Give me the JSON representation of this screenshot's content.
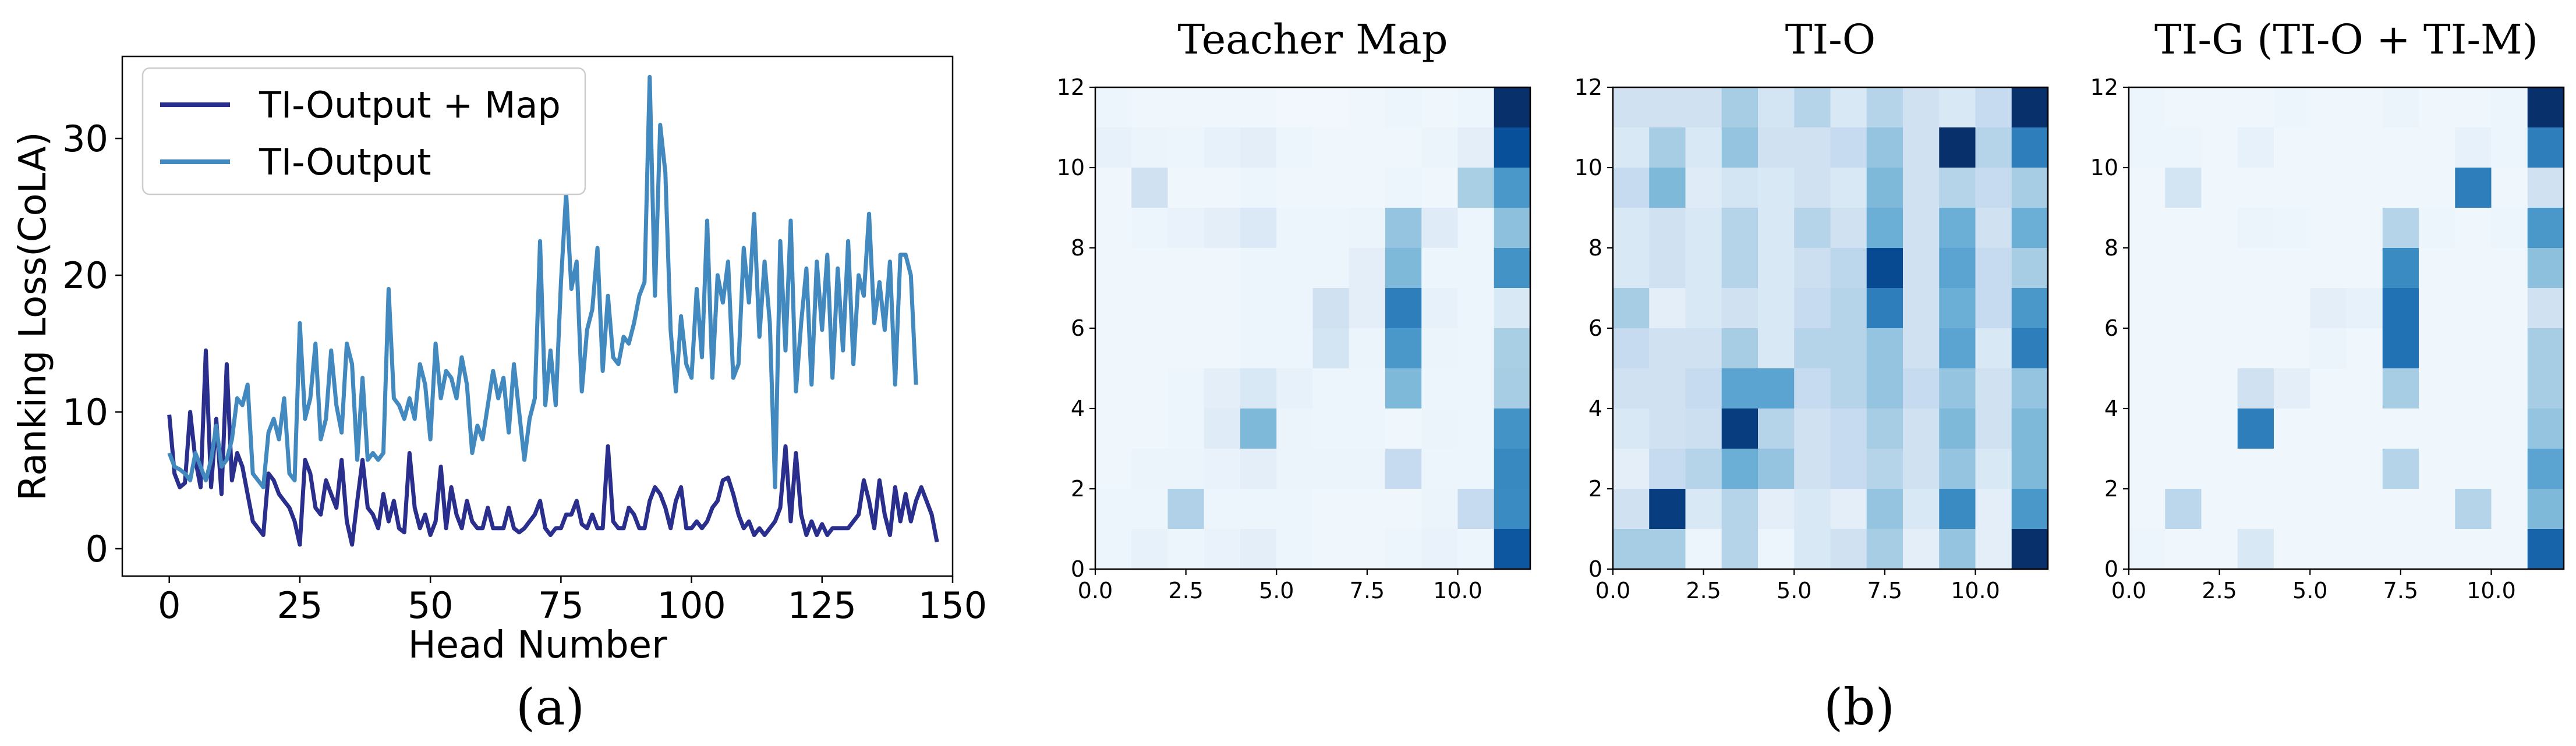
{
  "panel_labels": [
    "(a)",
    "(b)"
  ],
  "chart_data": [
    {
      "type": "line",
      "title": "",
      "xlabel": "Head Number",
      "ylabel": "Ranking Loss(CoLA)",
      "xlim": [
        -9,
        150
      ],
      "ylim": [
        -2,
        36
      ],
      "xticks": [
        0,
        25,
        50,
        75,
        100,
        125,
        150
      ],
      "yticks": [
        0,
        10,
        20,
        30
      ],
      "legend_position": "top-left",
      "grid": false,
      "series": [
        {
          "name": "TI-Output + Map",
          "color": "#2a2e8c",
          "values": [
            9.8,
            5.5,
            4.5,
            4.8,
            10.0,
            6.5,
            4.5,
            14.5,
            4.5,
            9.5,
            4.0,
            13.5,
            5.0,
            7.0,
            6.0,
            4.0,
            2.0,
            1.5,
            1.0,
            5.5,
            5.0,
            4.0,
            3.5,
            3.0,
            2.0,
            0.3,
            6.5,
            5.5,
            3.0,
            2.5,
            5.0,
            4.0,
            3.0,
            6.5,
            2.0,
            0.3,
            3.5,
            6.5,
            3.0,
            2.5,
            1.5,
            4.0,
            2.0,
            3.5,
            1.5,
            1.2,
            7.0,
            3.0,
            1.5,
            2.5,
            1.0,
            2.0,
            6.0,
            1.5,
            4.5,
            2.5,
            1.5,
            3.5,
            2.0,
            1.5,
            1.5,
            3.0,
            1.5,
            1.5,
            1.5,
            3.0,
            1.5,
            1.2,
            1.5,
            2.0,
            2.5,
            3.5,
            1.5,
            1.0,
            1.5,
            1.5,
            2.5,
            2.5,
            3.5,
            1.8,
            1.5,
            2.5,
            1.5,
            1.5,
            7.5,
            2.0,
            1.5,
            1.5,
            3.0,
            2.5,
            1.5,
            1.5,
            3.5,
            4.5,
            4.0,
            3.0,
            1.5,
            3.5,
            4.5,
            1.5,
            1.5,
            2.0,
            1.5,
            2.0,
            3.0,
            3.5,
            5.0,
            5.2,
            4.0,
            2.5,
            1.5,
            2.0,
            1.0,
            1.5,
            1.0,
            1.5,
            2.0,
            3.0,
            7.5,
            2.0,
            7.0,
            2.5,
            1.0,
            2.0,
            1.0,
            1.8,
            1.0,
            1.5,
            1.5,
            1.5,
            1.5,
            2.0,
            2.5,
            5.0,
            3.5,
            1.5,
            5.0,
            2.5,
            1.0,
            4.5,
            2.0,
            4.0,
            2.0,
            3.5,
            4.5,
            3.5,
            2.5,
            0.5
          ]
        },
        {
          "name": "TI-Output",
          "color": "#4289bf",
          "values": [
            7.0,
            6.0,
            5.8,
            5.5,
            5.0,
            7.0,
            6.0,
            5.0,
            6.5,
            9.0,
            6.0,
            6.5,
            8.0,
            11.0,
            10.5,
            12.0,
            5.5,
            5.0,
            4.5,
            8.5,
            9.5,
            8.0,
            11.0,
            5.5,
            5.0,
            16.5,
            9.5,
            11.0,
            15.0,
            8.0,
            9.5,
            14.5,
            10.5,
            8.5,
            15.0,
            13.5,
            6.5,
            12.5,
            6.5,
            7.0,
            6.5,
            7.0,
            19.0,
            11.0,
            10.5,
            9.5,
            11.0,
            9.5,
            13.5,
            12.0,
            8.0,
            15.0,
            11.0,
            13.0,
            12.5,
            11.0,
            14.0,
            12.0,
            7.0,
            9.0,
            8.0,
            10.5,
            13.0,
            11.0,
            12.5,
            8.5,
            13.5,
            10.0,
            6.5,
            9.5,
            11.0,
            22.5,
            10.5,
            14.5,
            10.5,
            19.5,
            26.0,
            19.0,
            21.0,
            11.5,
            16.0,
            17.5,
            22.0,
            13.0,
            18.5,
            14.0,
            13.5,
            15.5,
            15.0,
            16.5,
            18.5,
            19.5,
            34.5,
            18.5,
            31.0,
            27.5,
            16.0,
            11.5,
            17.0,
            13.5,
            12.5,
            19.0,
            14.0,
            24.0,
            12.5,
            20.0,
            18.0,
            21.0,
            12.5,
            13.5,
            22.0,
            18.0,
            24.5,
            15.5,
            21.0,
            16.5,
            4.5,
            22.5,
            14.5,
            24.0,
            11.5,
            16.5,
            20.5,
            12.0,
            21.0,
            16.0,
            21.5,
            12.5,
            20.5,
            14.5,
            22.5,
            13.5,
            20.0,
            18.5,
            24.5,
            16.5,
            19.5,
            16.0,
            21.0,
            12.0,
            21.5,
            21.5,
            20.0,
            12.0
          ]
        }
      ]
    },
    {
      "type": "heatmap",
      "title": "Teacher Map",
      "colormap": "Blues",
      "xlim": [
        0,
        12
      ],
      "ylim": [
        0,
        12
      ],
      "xticks": [
        "0.0",
        "2.5",
        "5.0",
        "7.5",
        "10.0"
      ],
      "yticks": [
        "0",
        "2",
        "4",
        "6",
        "8",
        "10",
        "12"
      ],
      "rows_top_to_bottom": [
        [
          0.05,
          0.04,
          0.04,
          0.04,
          0.04,
          0.03,
          0.03,
          0.04,
          0.05,
          0.04,
          0.05,
          1.0
        ],
        [
          0.08,
          0.06,
          0.05,
          0.08,
          0.1,
          0.05,
          0.04,
          0.04,
          0.04,
          0.06,
          0.1,
          0.88
        ],
        [
          0.04,
          0.2,
          0.04,
          0.04,
          0.05,
          0.04,
          0.04,
          0.04,
          0.05,
          0.04,
          0.34,
          0.6
        ],
        [
          0.04,
          0.05,
          0.07,
          0.1,
          0.14,
          0.05,
          0.05,
          0.06,
          0.4,
          0.12,
          0.05,
          0.42
        ],
        [
          0.04,
          0.04,
          0.04,
          0.04,
          0.05,
          0.05,
          0.05,
          0.1,
          0.45,
          0.05,
          0.05,
          0.62
        ],
        [
          0.04,
          0.04,
          0.04,
          0.04,
          0.05,
          0.05,
          0.2,
          0.1,
          0.7,
          0.08,
          0.05,
          0.15
        ],
        [
          0.04,
          0.04,
          0.04,
          0.04,
          0.05,
          0.05,
          0.18,
          0.06,
          0.6,
          0.06,
          0.05,
          0.34
        ],
        [
          0.04,
          0.04,
          0.05,
          0.1,
          0.15,
          0.08,
          0.05,
          0.05,
          0.45,
          0.05,
          0.05,
          0.35
        ],
        [
          0.04,
          0.04,
          0.05,
          0.12,
          0.45,
          0.06,
          0.05,
          0.05,
          0.04,
          0.06,
          0.05,
          0.62
        ],
        [
          0.04,
          0.06,
          0.06,
          0.07,
          0.1,
          0.06,
          0.06,
          0.06,
          0.25,
          0.05,
          0.05,
          0.66
        ],
        [
          0.05,
          0.05,
          0.32,
          0.05,
          0.05,
          0.05,
          0.04,
          0.04,
          0.04,
          0.06,
          0.25,
          0.65
        ],
        [
          0.05,
          0.08,
          0.05,
          0.07,
          0.1,
          0.05,
          0.04,
          0.04,
          0.05,
          0.07,
          0.05,
          0.85
        ]
      ]
    },
    {
      "type": "heatmap",
      "title": "TI-O",
      "colormap": "Blues",
      "xlim": [
        0,
        12
      ],
      "ylim": [
        0,
        12
      ],
      "xticks": [
        "0.0",
        "2.5",
        "5.0",
        "7.5",
        "10.0"
      ],
      "yticks": [
        "0",
        "2",
        "4",
        "6",
        "8",
        "10",
        "12"
      ],
      "rows_top_to_bottom": [
        [
          0.2,
          0.2,
          0.2,
          0.35,
          0.18,
          0.3,
          0.15,
          0.3,
          0.2,
          0.15,
          0.25,
          1.0
        ],
        [
          0.15,
          0.35,
          0.15,
          0.4,
          0.2,
          0.2,
          0.25,
          0.4,
          0.2,
          1.0,
          0.3,
          0.7
        ],
        [
          0.25,
          0.45,
          0.12,
          0.18,
          0.15,
          0.2,
          0.15,
          0.45,
          0.2,
          0.3,
          0.25,
          0.35
        ],
        [
          0.15,
          0.2,
          0.15,
          0.3,
          0.15,
          0.3,
          0.2,
          0.5,
          0.2,
          0.5,
          0.2,
          0.5
        ],
        [
          0.15,
          0.2,
          0.15,
          0.3,
          0.15,
          0.22,
          0.28,
          0.9,
          0.2,
          0.55,
          0.25,
          0.35
        ],
        [
          0.35,
          0.1,
          0.15,
          0.2,
          0.15,
          0.25,
          0.3,
          0.7,
          0.2,
          0.5,
          0.25,
          0.6
        ],
        [
          0.25,
          0.2,
          0.2,
          0.35,
          0.15,
          0.3,
          0.3,
          0.4,
          0.2,
          0.55,
          0.15,
          0.7
        ],
        [
          0.2,
          0.2,
          0.25,
          0.55,
          0.55,
          0.25,
          0.3,
          0.4,
          0.25,
          0.4,
          0.2,
          0.4
        ],
        [
          0.15,
          0.2,
          0.22,
          0.95,
          0.3,
          0.2,
          0.25,
          0.35,
          0.2,
          0.45,
          0.2,
          0.45
        ],
        [
          0.1,
          0.25,
          0.3,
          0.5,
          0.4,
          0.2,
          0.25,
          0.3,
          0.2,
          0.4,
          0.15,
          0.45
        ],
        [
          0.2,
          0.95,
          0.15,
          0.3,
          0.1,
          0.15,
          0.1,
          0.4,
          0.15,
          0.65,
          0.1,
          0.6
        ],
        [
          0.35,
          0.35,
          0.05,
          0.3,
          0.05,
          0.15,
          0.2,
          0.35,
          0.1,
          0.4,
          0.1,
          1.0
        ]
      ]
    },
    {
      "type": "heatmap",
      "title": "TI-G (TI-O + TI-M)",
      "colormap": "Blues",
      "xlim": [
        0,
        12
      ],
      "ylim": [
        0,
        12
      ],
      "xticks": [
        "0.0",
        "2.5",
        "5.0",
        "7.5",
        "10.0"
      ],
      "yticks": [
        "0",
        "2",
        "4",
        "6",
        "8",
        "10",
        "12"
      ],
      "rows_top_to_bottom": [
        [
          0.05,
          0.04,
          0.04,
          0.04,
          0.05,
          0.04,
          0.04,
          0.06,
          0.04,
          0.04,
          0.05,
          1.0
        ],
        [
          0.05,
          0.05,
          0.04,
          0.08,
          0.04,
          0.04,
          0.04,
          0.04,
          0.04,
          0.08,
          0.05,
          0.7
        ],
        [
          0.04,
          0.18,
          0.04,
          0.04,
          0.04,
          0.04,
          0.04,
          0.04,
          0.04,
          0.7,
          0.04,
          0.2
        ],
        [
          0.04,
          0.04,
          0.04,
          0.06,
          0.05,
          0.04,
          0.04,
          0.3,
          0.05,
          0.04,
          0.05,
          0.6
        ],
        [
          0.04,
          0.04,
          0.04,
          0.04,
          0.04,
          0.04,
          0.04,
          0.65,
          0.04,
          0.04,
          0.04,
          0.42
        ],
        [
          0.04,
          0.04,
          0.04,
          0.04,
          0.04,
          0.1,
          0.08,
          0.75,
          0.04,
          0.04,
          0.04,
          0.2
        ],
        [
          0.04,
          0.04,
          0.04,
          0.04,
          0.04,
          0.06,
          0.04,
          0.75,
          0.04,
          0.04,
          0.04,
          0.35
        ],
        [
          0.04,
          0.04,
          0.04,
          0.2,
          0.1,
          0.04,
          0.04,
          0.35,
          0.04,
          0.04,
          0.04,
          0.35
        ],
        [
          0.04,
          0.04,
          0.04,
          0.7,
          0.04,
          0.04,
          0.04,
          0.04,
          0.04,
          0.04,
          0.04,
          0.4
        ],
        [
          0.04,
          0.04,
          0.04,
          0.04,
          0.04,
          0.04,
          0.04,
          0.3,
          0.04,
          0.04,
          0.04,
          0.55
        ],
        [
          0.04,
          0.28,
          0.04,
          0.04,
          0.04,
          0.04,
          0.04,
          0.04,
          0.04,
          0.3,
          0.04,
          0.45
        ],
        [
          0.05,
          0.04,
          0.04,
          0.15,
          0.04,
          0.04,
          0.04,
          0.04,
          0.04,
          0.04,
          0.04,
          0.8
        ]
      ]
    }
  ]
}
